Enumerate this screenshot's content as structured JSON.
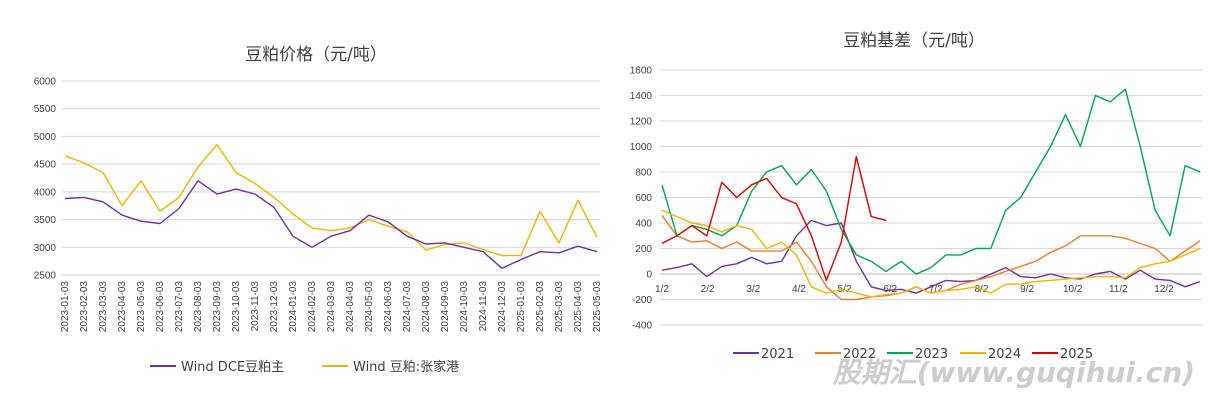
{
  "watermark": "股期汇(www.guqihui.cn)",
  "chart_data": [
    {
      "type": "line",
      "title": "豆粕价格（元/吨）",
      "y_ticks": [
        "6000",
        "5500",
        "5000",
        "4500",
        "4000",
        "3500",
        "3000",
        "2500"
      ],
      "ylim": [
        2500,
        6000
      ],
      "grid": "horizontal",
      "legend_position": "bottom",
      "x": [
        "2023-01-03",
        "2023-02-03",
        "2023-03-03",
        "2023-04-03",
        "2023-05-03",
        "2023-06-03",
        "2023-07-03",
        "2023-08-03",
        "2023-09-03",
        "2023-10-03",
        "2023-11-03",
        "2023-12-03",
        "2024-01-03",
        "2024-02-03",
        "2024-03-03",
        "2024-04-03",
        "2024-05-03",
        "2024-06-03",
        "2024-07-03",
        "2024-08-03",
        "2024-09-03",
        "2024-10-03",
        "2024-11-03",
        "2024-12-03",
        "2025-01-03",
        "2025-02-03",
        "2025-03-03",
        "2025-04-03",
        "2025-05-03"
      ],
      "series": [
        {
          "name": "Wind DCE豆粕主",
          "color": "#7030a0",
          "values": [
            3880,
            3900,
            3820,
            3580,
            3470,
            3430,
            3700,
            4200,
            3960,
            4050,
            3960,
            3720,
            3200,
            3000,
            3200,
            3300,
            3580,
            3460,
            3200,
            3060,
            3080,
            3000,
            2920,
            2620,
            2780,
            2920,
            2900,
            3020,
            2920
          ]
        },
        {
          "name": "Wind 豆粕:张家港",
          "color": "#f2b600",
          "values": [
            4650,
            4520,
            4350,
            3750,
            4200,
            3650,
            3900,
            4450,
            4850,
            4350,
            4150,
            3900,
            3600,
            3350,
            3300,
            3350,
            3500,
            3380,
            3280,
            2950,
            3050,
            3080,
            2960,
            2850,
            2850,
            3650,
            3080,
            3850,
            3180
          ]
        }
      ]
    },
    {
      "type": "line",
      "title": "豆粕基差（元/吨）",
      "y_ticks": [
        "1600",
        "1400",
        "1200",
        "1000",
        "800",
        "600",
        "400",
        "200",
        "0",
        "-200",
        "-400"
      ],
      "ylim": [
        -400,
        1600
      ],
      "grid": "horizontal",
      "legend_position": "bottom",
      "x_ticks": [
        "1/2",
        "2/2",
        "3/2",
        "4/2",
        "5/2",
        "6/2",
        "7/2",
        "8/2",
        "9/2",
        "10/2",
        "11/2",
        "12/2"
      ],
      "series": [
        {
          "name": "2021",
          "color": "#7030a0",
          "values": [
            30,
            50,
            80,
            -20,
            60,
            80,
            130,
            80,
            100,
            300,
            420,
            380,
            400,
            100,
            -100,
            -130,
            -120,
            -150,
            -100,
            -50,
            -60,
            -50,
            0,
            50,
            -20,
            -30,
            0,
            -30,
            -40,
            0,
            20,
            -40,
            30,
            -40,
            -50,
            -100,
            -60
          ]
        },
        {
          "name": "2022",
          "color": "#ed7d31",
          "values": [
            460,
            300,
            250,
            260,
            200,
            250,
            180,
            180,
            180,
            250,
            100,
            -100,
            -200,
            -200,
            -180,
            -170,
            -150,
            -100,
            -150,
            -130,
            -80,
            -50,
            -20,
            20,
            60,
            100,
            170,
            220,
            300,
            300,
            300,
            280,
            240,
            200,
            100,
            180,
            260
          ]
        },
        {
          "name": "2023",
          "color": "#00a650",
          "values": [
            700,
            300,
            380,
            350,
            300,
            380,
            650,
            800,
            850,
            700,
            820,
            650,
            350,
            150,
            100,
            20,
            100,
            0,
            50,
            150,
            150,
            200,
            200,
            500,
            600,
            800,
            1000,
            1250,
            1000,
            1400,
            1350,
            1450,
            1000,
            500,
            300,
            850,
            800
          ]
        },
        {
          "name": "2024",
          "color": "#f2b600",
          "values": [
            500,
            450,
            400,
            380,
            330,
            380,
            350,
            200,
            250,
            150,
            -100,
            -150,
            -120,
            -150,
            -180,
            -160,
            -150,
            -100,
            -150,
            -130,
            -120,
            -100,
            -150,
            -80,
            -80,
            -60,
            -50,
            -40,
            -30,
            -20,
            -20,
            -30,
            50,
            80,
            100,
            150,
            200
          ]
        },
        {
          "name": "2025",
          "color": "#e00000",
          "values": [
            240,
            300,
            380,
            300,
            720,
            600,
            700,
            750,
            600,
            550,
            300,
            -50,
            250,
            920,
            450,
            420
          ]
        }
      ]
    }
  ]
}
